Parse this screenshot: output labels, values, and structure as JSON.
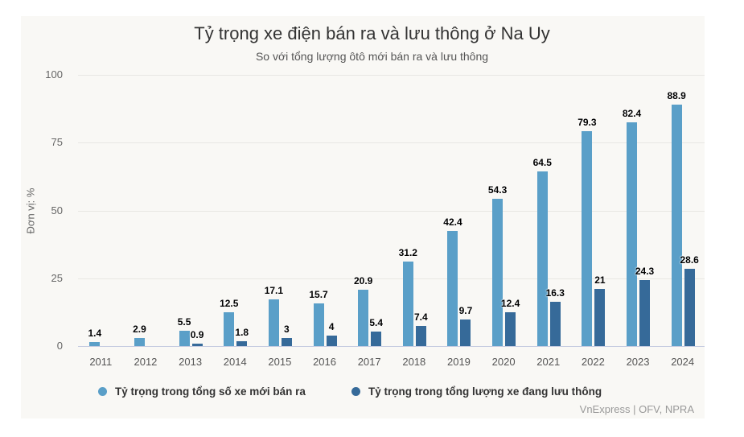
{
  "chart_data": {
    "type": "bar",
    "title": "Tỷ trọng xe điện bán ra và lưu thông ở Na Uy",
    "subtitle": "So với tổng lượng ôtô mới bán ra và lưu thông",
    "xlabel": "",
    "ylabel": "Đơn vị: %",
    "ylim": [
      0,
      100
    ],
    "yticks": [
      "0",
      "25",
      "50",
      "75",
      "100"
    ],
    "grid": true,
    "legend_position": "bottom",
    "categories": [
      "2011",
      "2012",
      "2013",
      "2014",
      "2015",
      "2016",
      "2017",
      "2018",
      "2019",
      "2020",
      "2021",
      "2022",
      "2023",
      "2024"
    ],
    "series": [
      {
        "name": "Tỷ trọng trong tổng số xe mới bán ra",
        "color": "#5a9fc8",
        "values": [
          1.4,
          2.9,
          5.5,
          12.5,
          17.1,
          15.7,
          20.9,
          31.2,
          42.4,
          54.3,
          64.5,
          79.3,
          82.4,
          88.9
        ],
        "labels": [
          "1.4",
          "2.9",
          "5.5",
          "12.5",
          "17.1",
          "15.7",
          "20.9",
          "31.2",
          "42.4",
          "54.3",
          "64.5",
          "79.3",
          "82.4",
          "88.9"
        ]
      },
      {
        "name": "Tỷ trọng trong tổng lượng xe đang lưu thông",
        "color": "#366a99",
        "values": [
          null,
          null,
          0.9,
          1.8,
          3,
          4,
          5.4,
          7.4,
          9.7,
          12.4,
          16.3,
          21,
          24.3,
          28.6
        ],
        "labels": [
          "",
          "",
          "0.9",
          "1.8",
          "3",
          "4",
          "5.4",
          "7.4",
          "9.7",
          "12.4",
          "16.3",
          "21",
          "24.3",
          "28.6"
        ]
      }
    ],
    "credit": "VnExpress | OFV, NPRA"
  }
}
